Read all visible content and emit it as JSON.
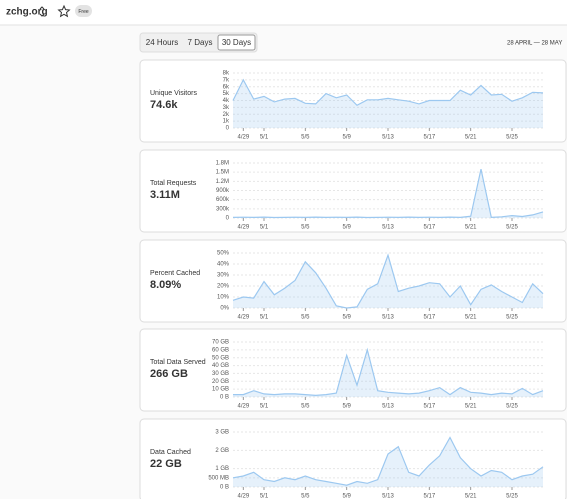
{
  "header": {
    "site": "zchg.org",
    "plan": "Free"
  },
  "tabs": [
    "24 Hours",
    "7 Days",
    "30 Days"
  ],
  "date_range": "28 APRIL — 28 MAY",
  "chart_data": [
    {
      "type": "line",
      "title": "Unique Visitors",
      "summary": "74.6k",
      "color": "#9cc8f0",
      "categories": [
        null,
        "4/29",
        null,
        "5/1",
        null,
        null,
        null,
        "5/5",
        null,
        null,
        null,
        "5/9",
        null,
        null,
        null,
        "5/13",
        null,
        null,
        null,
        "5/17",
        null,
        null,
        null,
        "5/21",
        null,
        null,
        null,
        "5/25",
        null,
        null,
        null
      ],
      "values": [
        4000,
        7000,
        4200,
        4600,
        3800,
        4200,
        4300,
        3600,
        3500,
        5000,
        4400,
        4800,
        3300,
        4100,
        4100,
        4300,
        4100,
        3900,
        3500,
        4000,
        4000,
        4000,
        5500,
        4800,
        6200,
        4800,
        4900,
        3900,
        4400,
        5200,
        5100
      ],
      "ylim": [
        0,
        8000
      ],
      "yticks": [
        0,
        {
          "value": 1000,
          "label": "1k"
        },
        {
          "value": 2000,
          "label": "2k"
        },
        {
          "value": 3000,
          "label": "3k"
        },
        {
          "value": 4000,
          "label": "4k"
        },
        {
          "value": 5000,
          "label": "5k"
        },
        {
          "value": 6000,
          "label": "6k"
        },
        {
          "value": 7000,
          "label": "7k"
        },
        {
          "value": 8000,
          "label": "8k"
        }
      ],
      "grid": true
    },
    {
      "type": "line",
      "title": "Total Requests",
      "summary": "3.11M",
      "color": "#9cc8f0",
      "categories": [
        null,
        "4/29",
        null,
        "5/1",
        null,
        null,
        null,
        "5/5",
        null,
        null,
        null,
        "5/9",
        null,
        null,
        null,
        "5/13",
        null,
        null,
        null,
        "5/17",
        null,
        null,
        null,
        "5/21",
        null,
        null,
        null,
        "5/25",
        null,
        null,
        null
      ],
      "values": [
        20000,
        25000,
        20000,
        30000,
        15000,
        20000,
        25000,
        20000,
        30000,
        20000,
        25000,
        20000,
        30000,
        15000,
        20000,
        25000,
        20000,
        30000,
        20000,
        25000,
        20000,
        30000,
        20000,
        60000,
        1600000,
        20000,
        40000,
        80000,
        50000,
        100000,
        200000
      ],
      "ylim": [
        0,
        1800000
      ],
      "yticks": [
        0,
        {
          "value": 300000,
          "label": "300k"
        },
        {
          "value": 600000,
          "label": "600k"
        },
        {
          "value": 900000,
          "label": "900k"
        },
        {
          "value": 1200000,
          "label": "1.2M"
        },
        {
          "value": 1500000,
          "label": "1.5M"
        },
        {
          "value": 1800000,
          "label": "1.8M"
        }
      ],
      "grid": true
    },
    {
      "type": "line",
      "title": "Percent Cached",
      "summary": "8.09%",
      "color": "#9cc8f0",
      "categories": [
        null,
        "4/29",
        null,
        "5/1",
        null,
        null,
        null,
        "5/5",
        null,
        null,
        null,
        "5/9",
        null,
        null,
        null,
        "5/13",
        null,
        null,
        null,
        "5/17",
        null,
        null,
        null,
        "5/21",
        null,
        null,
        null,
        "5/25",
        null,
        null,
        null
      ],
      "values": [
        7,
        10,
        9,
        24,
        12,
        18,
        25,
        42,
        32,
        18,
        2,
        0,
        1,
        17,
        22,
        48,
        15,
        18,
        20,
        23,
        22,
        10,
        20,
        3,
        17,
        21,
        15,
        10,
        5,
        22,
        13
      ],
      "ylim": [
        0,
        50
      ],
      "yticks": [
        {
          "value": 0,
          "label": "0%"
        },
        {
          "value": 10,
          "label": "10%"
        },
        {
          "value": 20,
          "label": "20%"
        },
        {
          "value": 30,
          "label": "30%"
        },
        {
          "value": 40,
          "label": "40%"
        },
        {
          "value": 50,
          "label": "50%"
        }
      ],
      "grid": true
    },
    {
      "type": "line",
      "title": "Total Data Served",
      "summary": "266 GB",
      "color": "#9cc8f0",
      "categories": [
        null,
        "4/29",
        null,
        "5/1",
        null,
        null,
        null,
        "5/5",
        null,
        null,
        null,
        "5/9",
        null,
        null,
        null,
        "5/13",
        null,
        null,
        null,
        "5/17",
        null,
        null,
        null,
        "5/21",
        null,
        null,
        null,
        "5/25",
        null,
        null,
        null
      ],
      "values": [
        3,
        3,
        8,
        4,
        3,
        4,
        4,
        3,
        2,
        3,
        5,
        53,
        15,
        60,
        8,
        6,
        5,
        4,
        5,
        8,
        12,
        3,
        12,
        6,
        5,
        3,
        5,
        4,
        11,
        3,
        8
      ],
      "ylim": [
        0,
        70
      ],
      "yticks": [
        {
          "value": 0,
          "label": "0 B"
        },
        {
          "value": 10,
          "label": "10 GB"
        },
        {
          "value": 20,
          "label": "20 GB"
        },
        {
          "value": 30,
          "label": "30 GB"
        },
        {
          "value": 40,
          "label": "40 GB"
        },
        {
          "value": 50,
          "label": "50 GB"
        },
        {
          "value": 60,
          "label": "60 GB"
        },
        {
          "value": 70,
          "label": "70 GB"
        }
      ],
      "grid": true
    },
    {
      "type": "line",
      "title": "Data Cached",
      "summary": "22 GB",
      "color": "#9cc8f0",
      "categories": [
        null,
        "4/29",
        null,
        "5/1",
        null,
        null,
        null,
        "5/5",
        null,
        null,
        null,
        "5/9",
        null,
        null,
        null,
        "5/13",
        null,
        null,
        null,
        "5/17",
        null,
        null,
        null,
        "5/21",
        null,
        null,
        null,
        "5/25",
        null,
        null,
        null
      ],
      "values": [
        0.5,
        0.6,
        0.8,
        0.4,
        0.3,
        0.5,
        0.4,
        0.6,
        0.4,
        0.3,
        0.2,
        0.1,
        0.3,
        0.2,
        0.4,
        1.8,
        2.2,
        0.8,
        0.6,
        1.2,
        1.7,
        2.7,
        1.6,
        1.0,
        0.6,
        0.9,
        0.8,
        0.4,
        0.6,
        0.7,
        1.1
      ],
      "ylim": [
        0,
        3
      ],
      "yticks": [
        {
          "value": 0,
          "label": "0 B"
        },
        {
          "value": 0.5,
          "label": "500 MB"
        },
        {
          "value": 1,
          "label": "1 GB"
        },
        {
          "value": 2,
          "label": "2 GB"
        },
        {
          "value": 3,
          "label": "3 GB"
        }
      ],
      "grid": true
    }
  ]
}
